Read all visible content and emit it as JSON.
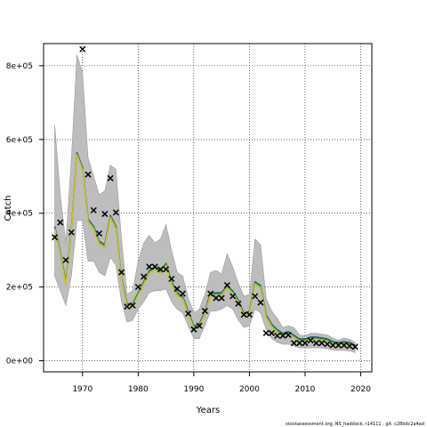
{
  "chart_data": {
    "type": "line",
    "xlabel": "Years",
    "ylabel": "Catch",
    "xlim": [
      1963,
      2022
    ],
    "ylim": [
      -30000,
      860000
    ],
    "x_ticks": [
      1970,
      1980,
      1990,
      2000,
      2010,
      2020
    ],
    "x_tick_labels": [
      "1970",
      "1980",
      "1990",
      "2000",
      "2010",
      "2020"
    ],
    "y_ticks": [
      0,
      200000,
      400000,
      600000,
      800000
    ],
    "y_tick_labels": [
      "0e+00",
      "2e+05",
      "4e+05",
      "6e+05",
      "8e+05"
    ],
    "grid": "dotted",
    "footer": "stockassessment.org, NS_haddock, r14111 , git: c28bdc2a4ad",
    "colors": {
      "band": "#bdbdbd",
      "band_edge": "#9a9a9a",
      "fit_lines": [
        "#1f3a8a",
        "#1f7a4a",
        "#4caf50",
        "#8bc34a",
        "#c8c03a"
      ],
      "observed": "#000000"
    },
    "observed": {
      "x": [
        1965,
        1966,
        1967,
        1968,
        1970,
        1971,
        1972,
        1973,
        1974,
        1975,
        1976,
        1977,
        1978,
        1979,
        1980,
        1981,
        1982,
        1983,
        1984,
        1985,
        1986,
        1987,
        1988,
        1989,
        1990,
        1991,
        1992,
        1993,
        1994,
        1995,
        1996,
        1997,
        1998,
        1999,
        2000,
        2001,
        2002,
        2003,
        2004,
        2005,
        2006,
        2007,
        2008,
        2009,
        2010,
        2011,
        2012,
        2013,
        2014,
        2015,
        2016,
        2017,
        2018,
        2019
      ],
      "y": [
        335000,
        375000,
        273000,
        348000,
        845000,
        505000,
        408000,
        345000,
        398000,
        495000,
        402000,
        240000,
        147000,
        150000,
        200000,
        228000,
        255000,
        255000,
        248000,
        248000,
        222000,
        195000,
        182000,
        128000,
        85000,
        95000,
        135000,
        182000,
        170000,
        170000,
        205000,
        175000,
        155000,
        125000,
        125000,
        175000,
        158000,
        75000,
        75000,
        68000,
        68000,
        70000,
        48000,
        48000,
        48000,
        55000,
        48000,
        48000,
        45000,
        42000,
        42000,
        42000,
        40000,
        38000
      ]
    },
    "fit": {
      "x": [
        1965,
        1966,
        1967,
        1968,
        1969,
        1970,
        1971,
        1972,
        1973,
        1974,
        1975,
        1976,
        1977,
        1978,
        1979,
        1980,
        1981,
        1982,
        1983,
        1984,
        1985,
        1986,
        1987,
        1988,
        1989,
        1990,
        1991,
        1992,
        1993,
        1994,
        1995,
        1996,
        1997,
        1998,
        1999,
        2000,
        2001,
        2002,
        2003,
        2004,
        2005,
        2006,
        2007,
        2008,
        2009,
        2010,
        2011,
        2012,
        2013,
        2014,
        2015,
        2016,
        2017,
        2018,
        2019
      ],
      "y": [
        360000,
        290000,
        210000,
        350000,
        560000,
        520000,
        380000,
        360000,
        320000,
        310000,
        390000,
        360000,
        220000,
        150000,
        150000,
        180000,
        210000,
        240000,
        250000,
        240000,
        260000,
        210000,
        180000,
        170000,
        130000,
        90000,
        95000,
        130000,
        180000,
        180000,
        180000,
        200000,
        185000,
        160000,
        125000,
        130000,
        210000,
        200000,
        120000,
        95000,
        80000,
        70000,
        75000,
        65000,
        55000,
        55000,
        60000,
        60000,
        58000,
        55000,
        48000,
        45000,
        48000,
        45000,
        38000
      ],
      "lower": [
        230000,
        190000,
        150000,
        230000,
        380000,
        380000,
        270000,
        270000,
        240000,
        230000,
        280000,
        260000,
        160000,
        105000,
        110000,
        140000,
        160000,
        185000,
        190000,
        190000,
        195000,
        160000,
        140000,
        130000,
        95000,
        60000,
        60000,
        95000,
        135000,
        135000,
        140000,
        150000,
        140000,
        110000,
        90000,
        95000,
        140000,
        130000,
        85000,
        60000,
        50000,
        45000,
        45000,
        40000,
        35000,
        35000,
        35000,
        35000,
        35000,
        33000,
        30000,
        28000,
        28000,
        27000,
        22000
      ],
      "upper": [
        640000,
        450000,
        320000,
        550000,
        830000,
        780000,
        550000,
        500000,
        450000,
        460000,
        530000,
        520000,
        330000,
        180000,
        190000,
        270000,
        320000,
        340000,
        320000,
        330000,
        370000,
        300000,
        240000,
        230000,
        170000,
        130000,
        140000,
        180000,
        240000,
        245000,
        235000,
        290000,
        255000,
        210000,
        175000,
        180000,
        330000,
        315000,
        170000,
        135000,
        115000,
        90000,
        95000,
        90000,
        70000,
        68000,
        75000,
        75000,
        72000,
        70000,
        62000,
        55000,
        62000,
        58000,
        50000
      ]
    }
  }
}
